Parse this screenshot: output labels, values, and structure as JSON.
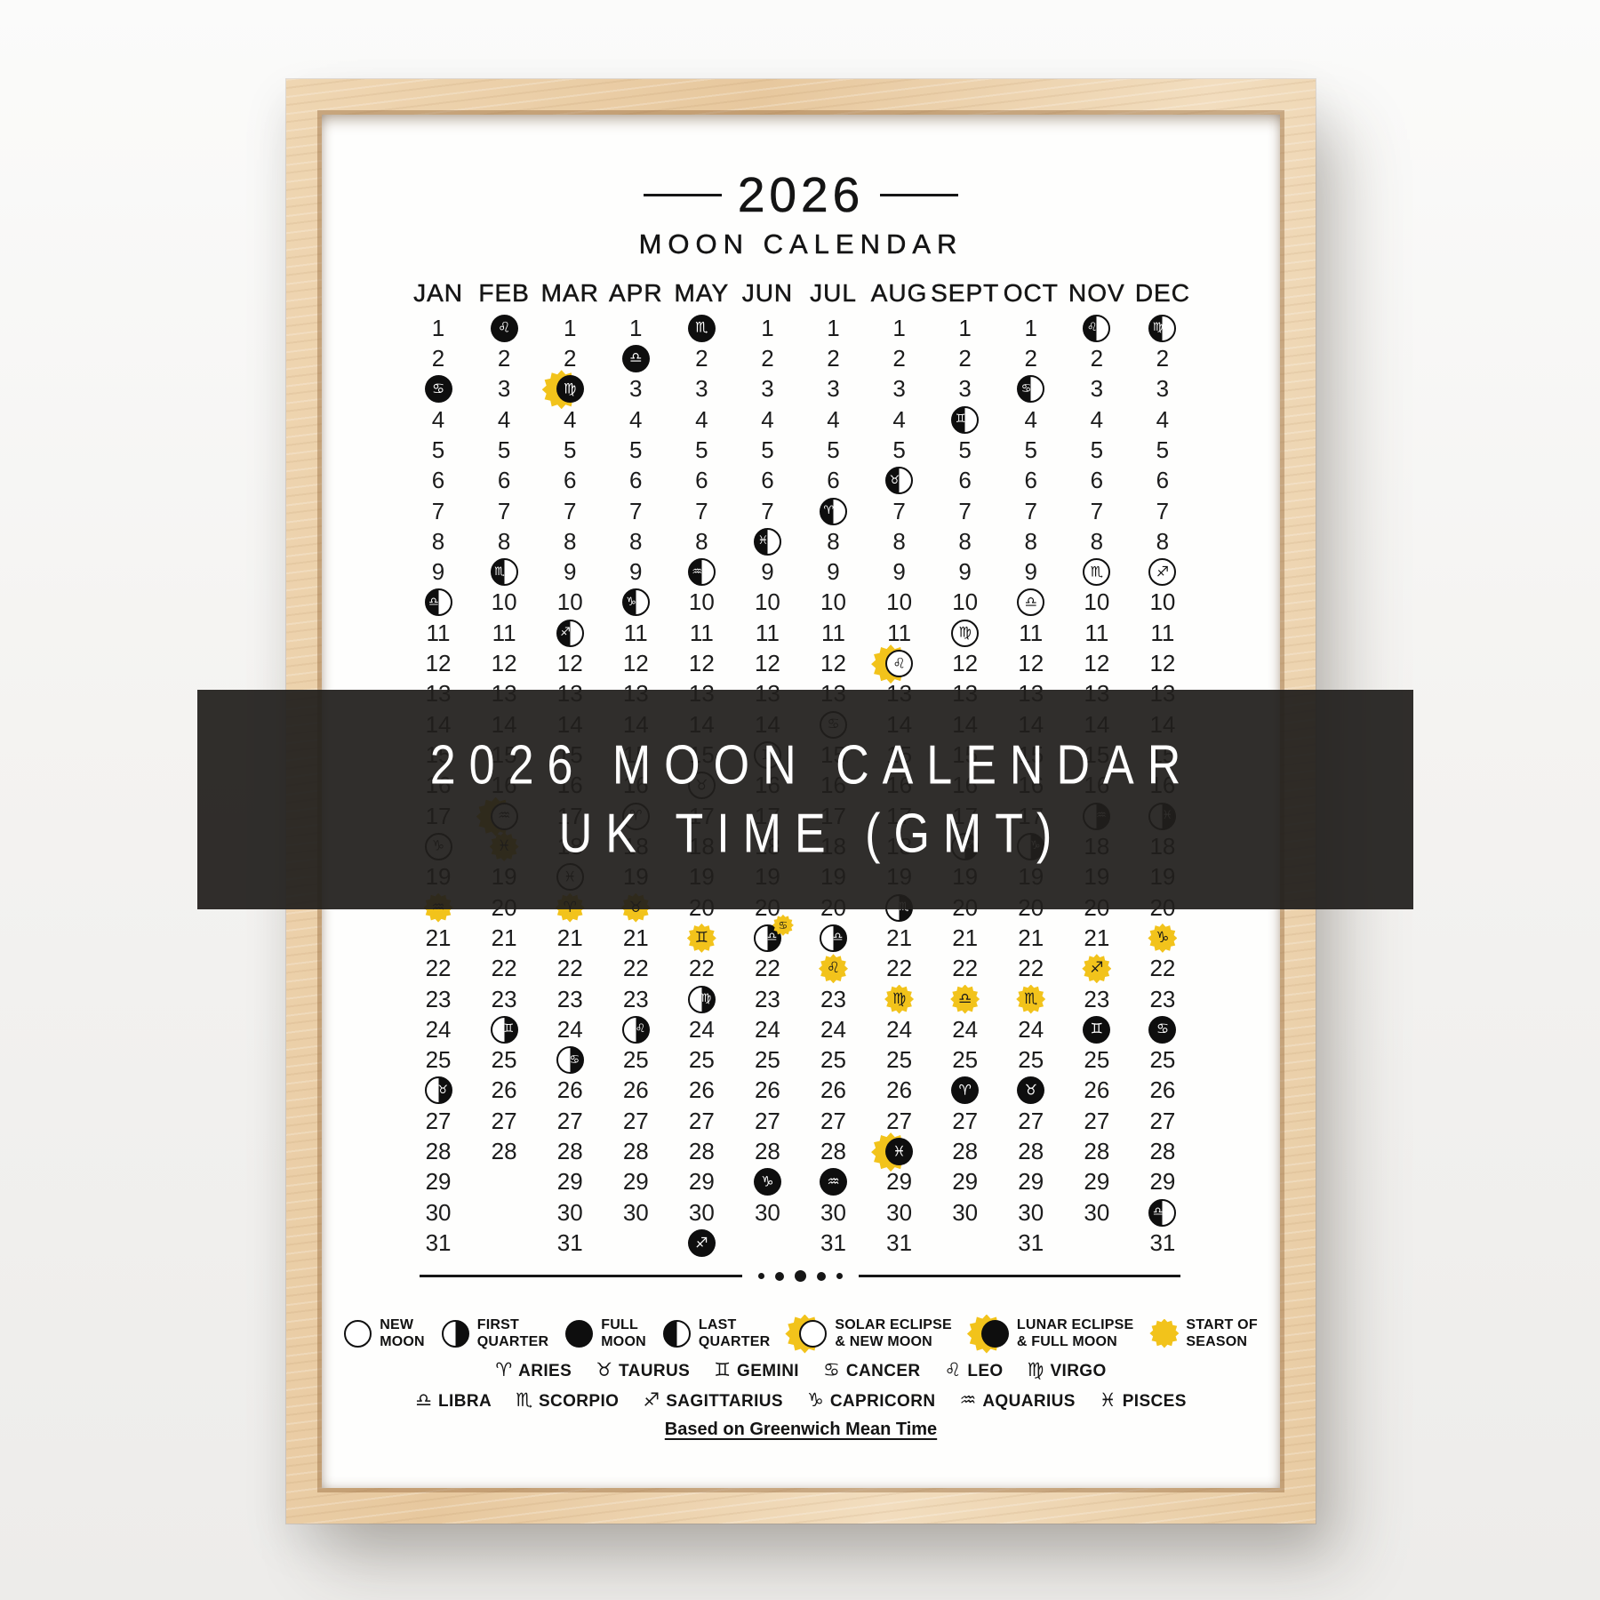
{
  "banner": {
    "line1": "2026 MOON CALENDAR",
    "line2": "UK TIME (GMT)"
  },
  "poster": {
    "year": "2026",
    "title": "MOON CALENDAR",
    "footer": "Based on Greenwich Mean Time",
    "months": [
      {
        "label": "JAN",
        "days": 31,
        "events": [
          {
            "day": 3,
            "type": "full",
            "sign": "cancer"
          },
          {
            "day": 10,
            "type": "last",
            "sign": "libra"
          },
          {
            "day": 18,
            "type": "new",
            "sign": "capricorn"
          },
          {
            "day": 20,
            "type": "season",
            "sign": "aquarius"
          },
          {
            "day": 26,
            "type": "first",
            "sign": "taurus"
          }
        ]
      },
      {
        "label": "FEB",
        "days": 28,
        "events": [
          {
            "day": 1,
            "type": "full",
            "sign": "leo"
          },
          {
            "day": 9,
            "type": "last",
            "sign": "scorpio"
          },
          {
            "day": 17,
            "type": "solar_eclipse_new",
            "sign": "aquarius"
          },
          {
            "day": 18,
            "type": "season",
            "sign": "pisces"
          },
          {
            "day": 24,
            "type": "first",
            "sign": "gemini"
          }
        ]
      },
      {
        "label": "MAR",
        "days": 31,
        "events": [
          {
            "day": 3,
            "type": "lunar_eclipse_full",
            "sign": "virgo"
          },
          {
            "day": 11,
            "type": "last",
            "sign": "sagittarius"
          },
          {
            "day": 19,
            "type": "new",
            "sign": "pisces"
          },
          {
            "day": 20,
            "type": "season",
            "sign": "aries"
          },
          {
            "day": 25,
            "type": "first",
            "sign": "cancer"
          }
        ]
      },
      {
        "label": "APR",
        "days": 30,
        "events": [
          {
            "day": 2,
            "type": "full",
            "sign": "libra"
          },
          {
            "day": 10,
            "type": "last",
            "sign": "capricorn"
          },
          {
            "day": 17,
            "type": "new",
            "sign": "aries"
          },
          {
            "day": 20,
            "type": "season",
            "sign": "taurus"
          },
          {
            "day": 24,
            "type": "first",
            "sign": "leo"
          }
        ]
      },
      {
        "label": "MAY",
        "days": 31,
        "events": [
          {
            "day": 1,
            "type": "full",
            "sign": "scorpio"
          },
          {
            "day": 9,
            "type": "last",
            "sign": "aquarius"
          },
          {
            "day": 16,
            "type": "new",
            "sign": "taurus"
          },
          {
            "day": 21,
            "type": "season",
            "sign": "gemini"
          },
          {
            "day": 23,
            "type": "first",
            "sign": "virgo"
          },
          {
            "day": 31,
            "type": "full",
            "sign": "sagittarius"
          }
        ]
      },
      {
        "label": "JUN",
        "days": 30,
        "events": [
          {
            "day": 8,
            "type": "last",
            "sign": "pisces"
          },
          {
            "day": 15,
            "type": "new",
            "sign": "gemini"
          },
          {
            "day": 21,
            "type": "first_season",
            "sign": "libra",
            "season_sign": "cancer"
          },
          {
            "day": 29,
            "type": "full",
            "sign": "capricorn"
          }
        ]
      },
      {
        "label": "JUL",
        "days": 31,
        "events": [
          {
            "day": 7,
            "type": "last",
            "sign": "aries"
          },
          {
            "day": 14,
            "type": "new",
            "sign": "cancer"
          },
          {
            "day": 21,
            "type": "first",
            "sign": "libra"
          },
          {
            "day": 22,
            "type": "season",
            "sign": "leo"
          },
          {
            "day": 29,
            "type": "full",
            "sign": "aquarius"
          }
        ]
      },
      {
        "label": "AUG",
        "days": 31,
        "events": [
          {
            "day": 6,
            "type": "last",
            "sign": "taurus"
          },
          {
            "day": 12,
            "type": "solar_eclipse_new",
            "sign": "leo"
          },
          {
            "day": 20,
            "type": "first",
            "sign": "scorpio"
          },
          {
            "day": 23,
            "type": "season",
            "sign": "virgo"
          },
          {
            "day": 28,
            "type": "lunar_eclipse_full",
            "sign": "pisces"
          }
        ]
      },
      {
        "label": "SEPT",
        "days": 30,
        "events": [
          {
            "day": 4,
            "type": "last",
            "sign": "gemini"
          },
          {
            "day": 11,
            "type": "new",
            "sign": "virgo"
          },
          {
            "day": 18,
            "type": "first",
            "sign": "sagittarius"
          },
          {
            "day": 23,
            "type": "season",
            "sign": "libra"
          },
          {
            "day": 26,
            "type": "full",
            "sign": "aries"
          }
        ]
      },
      {
        "label": "OCT",
        "days": 31,
        "events": [
          {
            "day": 3,
            "type": "last",
            "sign": "cancer"
          },
          {
            "day": 10,
            "type": "new",
            "sign": "libra"
          },
          {
            "day": 18,
            "type": "first",
            "sign": "capricorn"
          },
          {
            "day": 23,
            "type": "season",
            "sign": "scorpio"
          },
          {
            "day": 26,
            "type": "full",
            "sign": "taurus"
          }
        ]
      },
      {
        "label": "NOV",
        "days": 30,
        "events": [
          {
            "day": 1,
            "type": "last",
            "sign": "leo"
          },
          {
            "day": 9,
            "type": "new",
            "sign": "scorpio"
          },
          {
            "day": 17,
            "type": "first",
            "sign": "aquarius"
          },
          {
            "day": 22,
            "type": "season",
            "sign": "sagittarius"
          },
          {
            "day": 24,
            "type": "full",
            "sign": "gemini"
          }
        ]
      },
      {
        "label": "DEC",
        "days": 31,
        "events": [
          {
            "day": 1,
            "type": "last",
            "sign": "virgo"
          },
          {
            "day": 9,
            "type": "new",
            "sign": "sagittarius"
          },
          {
            "day": 17,
            "type": "first",
            "sign": "pisces"
          },
          {
            "day": 21,
            "type": "season",
            "sign": "capricorn"
          },
          {
            "day": 24,
            "type": "full",
            "sign": "cancer"
          },
          {
            "day": 30,
            "type": "last",
            "sign": "libra"
          }
        ]
      }
    ],
    "legend": {
      "phases": [
        {
          "icon": "new",
          "label": [
            "NEW",
            "MOON"
          ]
        },
        {
          "icon": "first",
          "label": [
            "FIRST",
            "QUARTER"
          ]
        },
        {
          "icon": "full",
          "label": [
            "FULL",
            "MOON"
          ]
        },
        {
          "icon": "last",
          "label": [
            "LAST",
            "QUARTER"
          ]
        },
        {
          "icon": "solar_eclipse_new",
          "label": [
            "SOLAR ECLIPSE",
            "& NEW MOON"
          ]
        },
        {
          "icon": "lunar_eclipse_full",
          "label": [
            "LUNAR ECLIPSE",
            "& FULL MOON"
          ]
        },
        {
          "icon": "season",
          "label": [
            "START OF",
            "SEASON"
          ]
        }
      ],
      "zodiac_row1": [
        {
          "sign": "aries",
          "name": "ARIES"
        },
        {
          "sign": "taurus",
          "name": "TAURUS"
        },
        {
          "sign": "gemini",
          "name": "GEMINI"
        },
        {
          "sign": "cancer",
          "name": "CANCER"
        },
        {
          "sign": "leo",
          "name": "LEO"
        },
        {
          "sign": "virgo",
          "name": "VIRGO"
        }
      ],
      "zodiac_row2": [
        {
          "sign": "libra",
          "name": "LIBRA"
        },
        {
          "sign": "scorpio",
          "name": "SCORPIO"
        },
        {
          "sign": "sagittarius",
          "name": "SAGITTARIUS"
        },
        {
          "sign": "capricorn",
          "name": "CAPRICORN"
        },
        {
          "sign": "aquarius",
          "name": "AQUARIUS"
        },
        {
          "sign": "pisces",
          "name": "PISCES"
        }
      ]
    }
  },
  "zodiac_glyphs": {
    "aries": "♈",
    "taurus": "♉",
    "gemini": "♊",
    "cancer": "♋",
    "leo": "♌",
    "virgo": "♍",
    "libra": "♎",
    "scorpio": "♏",
    "sagittarius": "♐",
    "capricorn": "♑",
    "aquarius": "♒",
    "pisces": "♓"
  },
  "colors": {
    "accent_yellow": "#F2C31B",
    "ink": "#151515",
    "banner_bg": "rgba(32,30,28,0.93)"
  }
}
